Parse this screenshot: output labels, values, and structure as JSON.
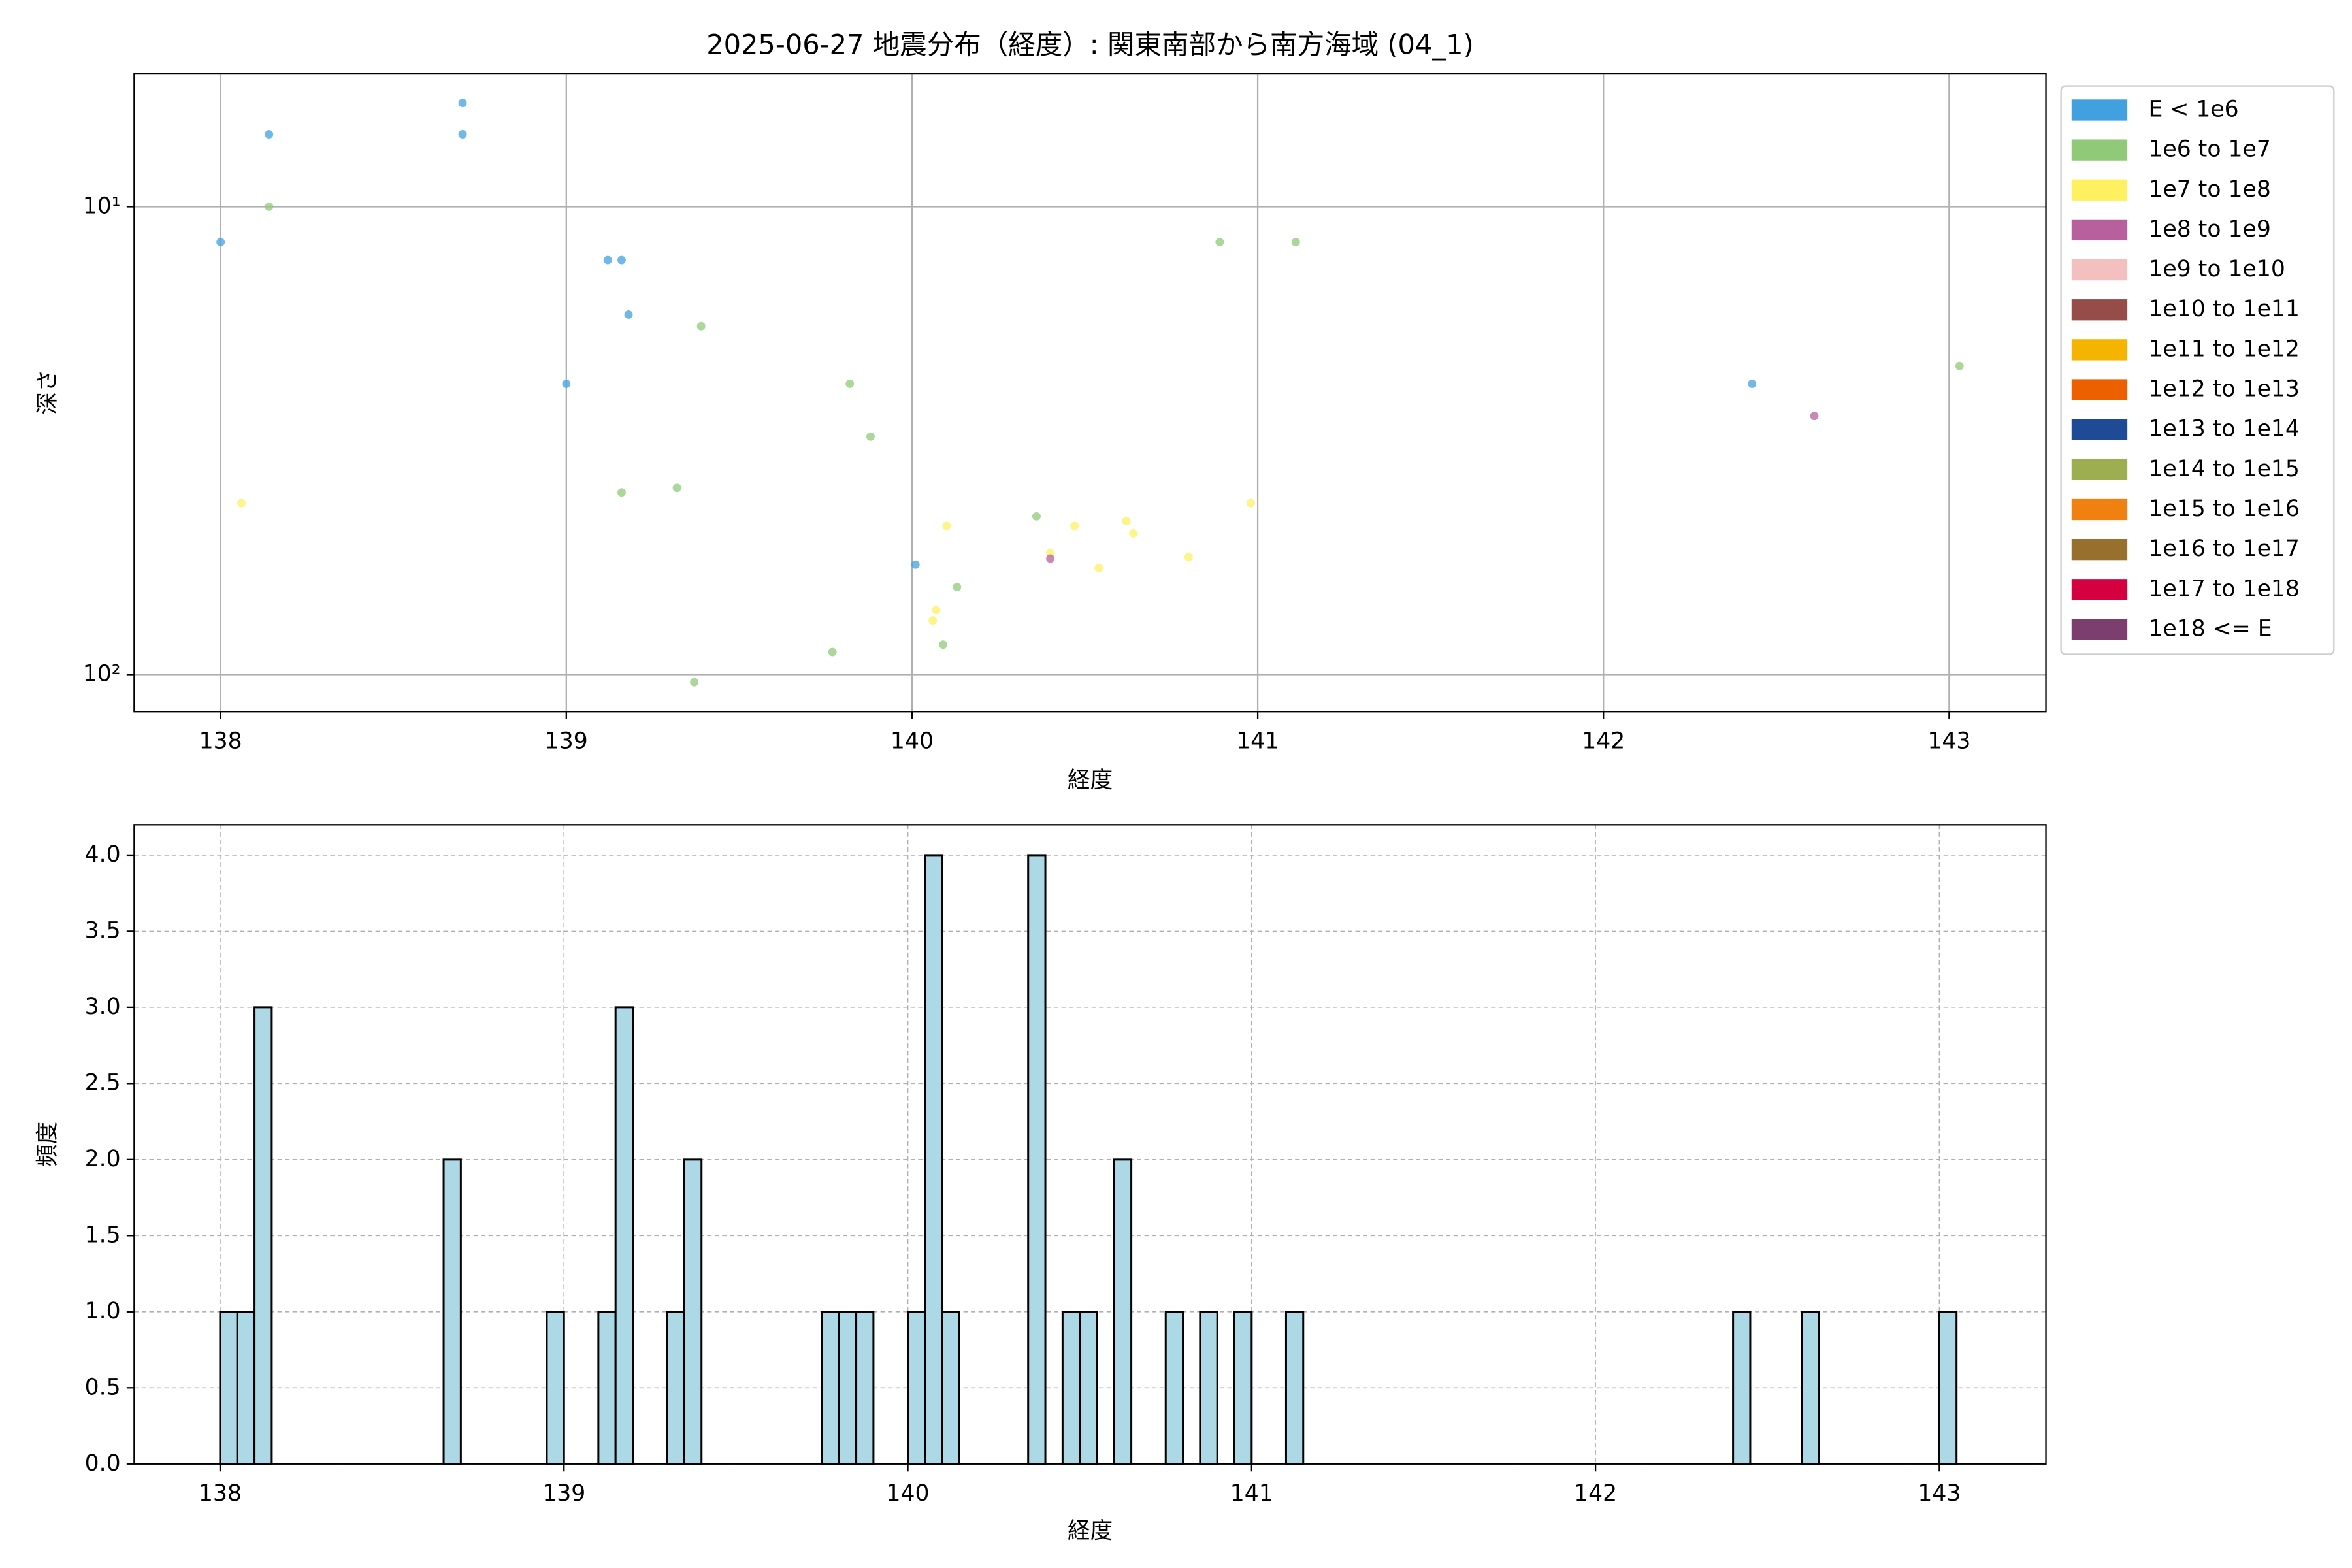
{
  "chart_data": [
    {
      "type": "scatter",
      "title": "2025-06-27 地震分布（経度）: 関東南部から南方海域 (04_1)",
      "x_label": "経度",
      "y_label": "深さ",
      "xlim": [
        137.75,
        143.28
      ],
      "xticks": [
        138,
        139,
        140,
        141,
        142,
        143
      ],
      "ylim": [
        120,
        5.2
      ],
      "yscale": "log",
      "yticks": [
        {
          "value": 10,
          "label": "10¹"
        },
        {
          "value": 100,
          "label": "10²"
        }
      ],
      "grid": "solid",
      "legend": "outside right",
      "series": [
        {
          "name": "E < 1e6",
          "color": "#40a0e0",
          "x": [
            138.0,
            138.14,
            138.7,
            138.7,
            139.12,
            139.16,
            139.18,
            139.0,
            140.01,
            142.43
          ],
          "values": [
            11.9,
            7.0,
            6.0,
            7.0,
            13.0,
            13.0,
            17.0,
            23.9,
            58.2,
            23.9
          ]
        },
        {
          "name": "1e6 to 1e7",
          "color": "#90c978",
          "x": [
            138.14,
            139.39,
            139.82,
            139.88,
            139.16,
            139.32,
            140.36,
            140.13,
            140.09,
            139.77,
            139.37,
            140.89,
            141.11,
            143.03
          ],
          "values": [
            10,
            18.0,
            23.9,
            31.0,
            40.8,
            39.9,
            45.9,
            65.0,
            86.3,
            89.5,
            103.8,
            11.9,
            11.9,
            21.9
          ]
        },
        {
          "name": "1e7 to 1e8",
          "color": "#fff060",
          "x": [
            138.06,
            140.1,
            140.47,
            140.62,
            140.64,
            140.4,
            140.54,
            140.8,
            140.98,
            140.07,
            140.06
          ],
          "values": [
            43.0,
            48.1,
            48.1,
            47.0,
            49.9,
            55.0,
            59.2,
            56.1,
            43.0,
            72.8,
            76.6
          ]
        },
        {
          "name": "1e8 to 1e9",
          "color": "#b8609e",
          "x": [
            140.4,
            142.61
          ],
          "values": [
            56.5,
            28.0
          ]
        },
        {
          "name": "1e9 to 1e10",
          "color": "#f4bfbf",
          "x": [],
          "values": []
        },
        {
          "name": "1e10 to 1e11",
          "color": "#964d4a",
          "x": [],
          "values": []
        },
        {
          "name": "1e11 to 1e12",
          "color": "#f5b400",
          "x": [],
          "values": []
        },
        {
          "name": "1e12 to 1e13",
          "color": "#ec6000",
          "x": [],
          "values": []
        },
        {
          "name": "1e13 to 1e14",
          "color": "#1f4a96",
          "x": [],
          "values": []
        },
        {
          "name": "1e14 to 1e15",
          "color": "#9cae50",
          "x": [],
          "values": []
        },
        {
          "name": "1e15 to 1e16",
          "color": "#f08010",
          "x": [],
          "values": []
        },
        {
          "name": "1e16 to 1e17",
          "color": "#97702d",
          "x": [],
          "values": []
        },
        {
          "name": "1e17 to 1e18",
          "color": "#d40040",
          "x": [],
          "values": []
        },
        {
          "name": "1e18 <= E",
          "color": "#7b3e6e",
          "x": [],
          "values": []
        }
      ]
    },
    {
      "type": "histogram",
      "x_label": "経度",
      "y_label": "頻度",
      "color": "#add8e6",
      "edgecolor": "#000000",
      "xlim": [
        137.75,
        143.31
      ],
      "xticks": [
        138,
        139,
        140,
        141,
        142,
        143
      ],
      "ylim": [
        0,
        4.2
      ],
      "yticks": [
        {
          "value": 0,
          "label": "0.0"
        },
        {
          "value": 0.5,
          "label": "0.5"
        },
        {
          "value": 1,
          "label": "1.0"
        },
        {
          "value": 1.5,
          "label": "1.5"
        },
        {
          "value": 2,
          "label": "2.0"
        },
        {
          "value": 2.5,
          "label": "2.5"
        },
        {
          "value": 3,
          "label": "3.0"
        },
        {
          "value": 3.5,
          "label": "3.5"
        },
        {
          "value": 4,
          "label": "4.0"
        }
      ],
      "grid": "dashed",
      "bins": [
        138.0,
        138.05,
        138.1,
        138.15,
        138.2,
        138.25,
        138.3,
        138.35,
        138.4,
        138.45,
        138.5,
        138.55,
        138.6,
        138.65,
        138.7,
        138.75,
        138.8,
        138.85,
        138.9,
        138.95,
        139.0,
        139.05,
        139.1,
        139.15,
        139.2,
        139.25,
        139.3,
        139.35,
        139.4,
        139.45,
        139.5,
        139.55,
        139.6,
        139.65,
        139.7,
        139.75,
        139.8,
        139.85,
        139.9,
        139.95,
        140.0,
        140.05,
        140.1,
        140.15,
        140.2,
        140.25,
        140.3,
        140.35,
        140.4,
        140.45,
        140.5,
        140.55,
        140.6,
        140.65,
        140.7,
        140.75,
        140.8,
        140.85,
        140.9,
        140.95,
        141.0,
        141.05,
        141.1,
        141.15,
        141.2,
        141.25,
        141.3,
        141.35,
        141.4,
        141.45,
        141.5,
        141.55,
        141.6,
        141.65,
        141.7,
        141.75,
        141.8,
        141.85,
        141.9,
        141.95,
        142.0,
        142.05,
        142.1,
        142.15,
        142.2,
        142.25,
        142.3,
        142.35,
        142.4,
        142.45,
        142.5,
        142.55,
        142.6,
        142.65,
        142.7,
        142.75,
        142.8,
        142.85,
        142.9,
        142.95,
        143.0,
        143.05
      ],
      "values": [
        1,
        1,
        3,
        0,
        0,
        0,
        0,
        0,
        0,
        0,
        0,
        0,
        0,
        2,
        0,
        0,
        0,
        0,
        0,
        1,
        0,
        0,
        1,
        3,
        0,
        0,
        1,
        2,
        0,
        0,
        0,
        0,
        0,
        0,
        0,
        1,
        1,
        1,
        0,
        0,
        1,
        4,
        1,
        0,
        0,
        0,
        0,
        4,
        0,
        1,
        1,
        0,
        2,
        0,
        0,
        1,
        0,
        1,
        0,
        1,
        0,
        0,
        1,
        0,
        0,
        0,
        0,
        0,
        0,
        0,
        0,
        0,
        0,
        0,
        0,
        0,
        0,
        0,
        0,
        0,
        0,
        0,
        0,
        0,
        0,
        0,
        0,
        0,
        1,
        0,
        0,
        0,
        1,
        0,
        0,
        0,
        0,
        0,
        0,
        0,
        1
      ]
    }
  ]
}
